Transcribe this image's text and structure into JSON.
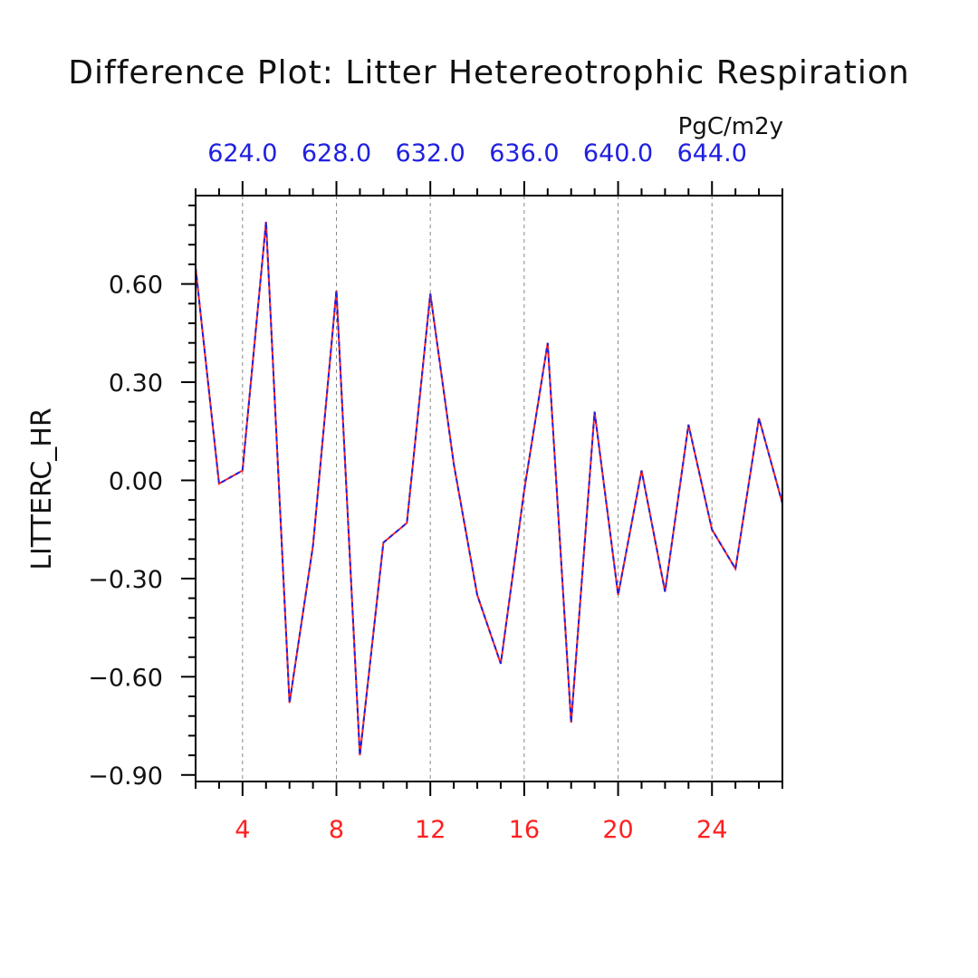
{
  "chart_data": {
    "type": "line",
    "title": "Difference Plot: Litter Hetereotrophic Respiration",
    "units": "PgC/m2y",
    "ylabel": "LITTERC_HR",
    "xlim": [
      2,
      27
    ],
    "ylim": [
      -0.92,
      0.87
    ],
    "x_ticks": [
      4,
      8,
      12,
      16,
      20,
      24
    ],
    "x_tick_labels": [
      "4",
      "8",
      "12",
      "16",
      "20",
      "24"
    ],
    "y_ticks": [
      -0.9,
      -0.6,
      -0.3,
      0.0,
      0.3,
      0.6
    ],
    "y_tick_labels": [
      "−0.90",
      "−0.60",
      "−0.30",
      "0.00",
      "0.30",
      "0.60"
    ],
    "top_axis_tick_labels": [
      "624.0",
      "628.0",
      "632.0",
      "636.0",
      "640.0",
      "644.0"
    ],
    "x_tick_color": "#ff2020",
    "top_tick_color": "#2020e0",
    "grid": "vertical dashed at major x ticks",
    "series": [
      {
        "color": "#ff2020",
        "style": "solid",
        "x": [
          2,
          3,
          4,
          5,
          6,
          7,
          8,
          9,
          10,
          11,
          12,
          13,
          14,
          15,
          16,
          17,
          18,
          19,
          20,
          21,
          22,
          23,
          24,
          25,
          26,
          27
        ],
        "values": [
          0.65,
          -0.01,
          0.03,
          0.79,
          -0.68,
          -0.2,
          0.58,
          -0.84,
          -0.19,
          -0.13,
          0.57,
          0.05,
          -0.35,
          -0.56,
          -0.03,
          0.42,
          -0.74,
          0.21,
          -0.35,
          0.03,
          -0.34,
          0.17,
          -0.15,
          -0.27,
          0.19,
          -0.07
        ]
      },
      {
        "color": "#2020e0",
        "style": "dashed",
        "x": [
          2,
          3,
          4,
          5,
          6,
          7,
          8,
          9,
          10,
          11,
          12,
          13,
          14,
          15,
          16,
          17,
          18,
          19,
          20,
          21,
          22,
          23,
          24,
          25,
          26,
          27
        ],
        "values": [
          0.65,
          -0.01,
          0.03,
          0.79,
          -0.68,
          -0.2,
          0.58,
          -0.84,
          -0.19,
          -0.13,
          0.57,
          0.05,
          -0.35,
          -0.56,
          -0.03,
          0.42,
          -0.74,
          0.21,
          -0.35,
          0.03,
          -0.34,
          0.17,
          -0.15,
          -0.27,
          0.19,
          -0.07
        ]
      }
    ]
  }
}
